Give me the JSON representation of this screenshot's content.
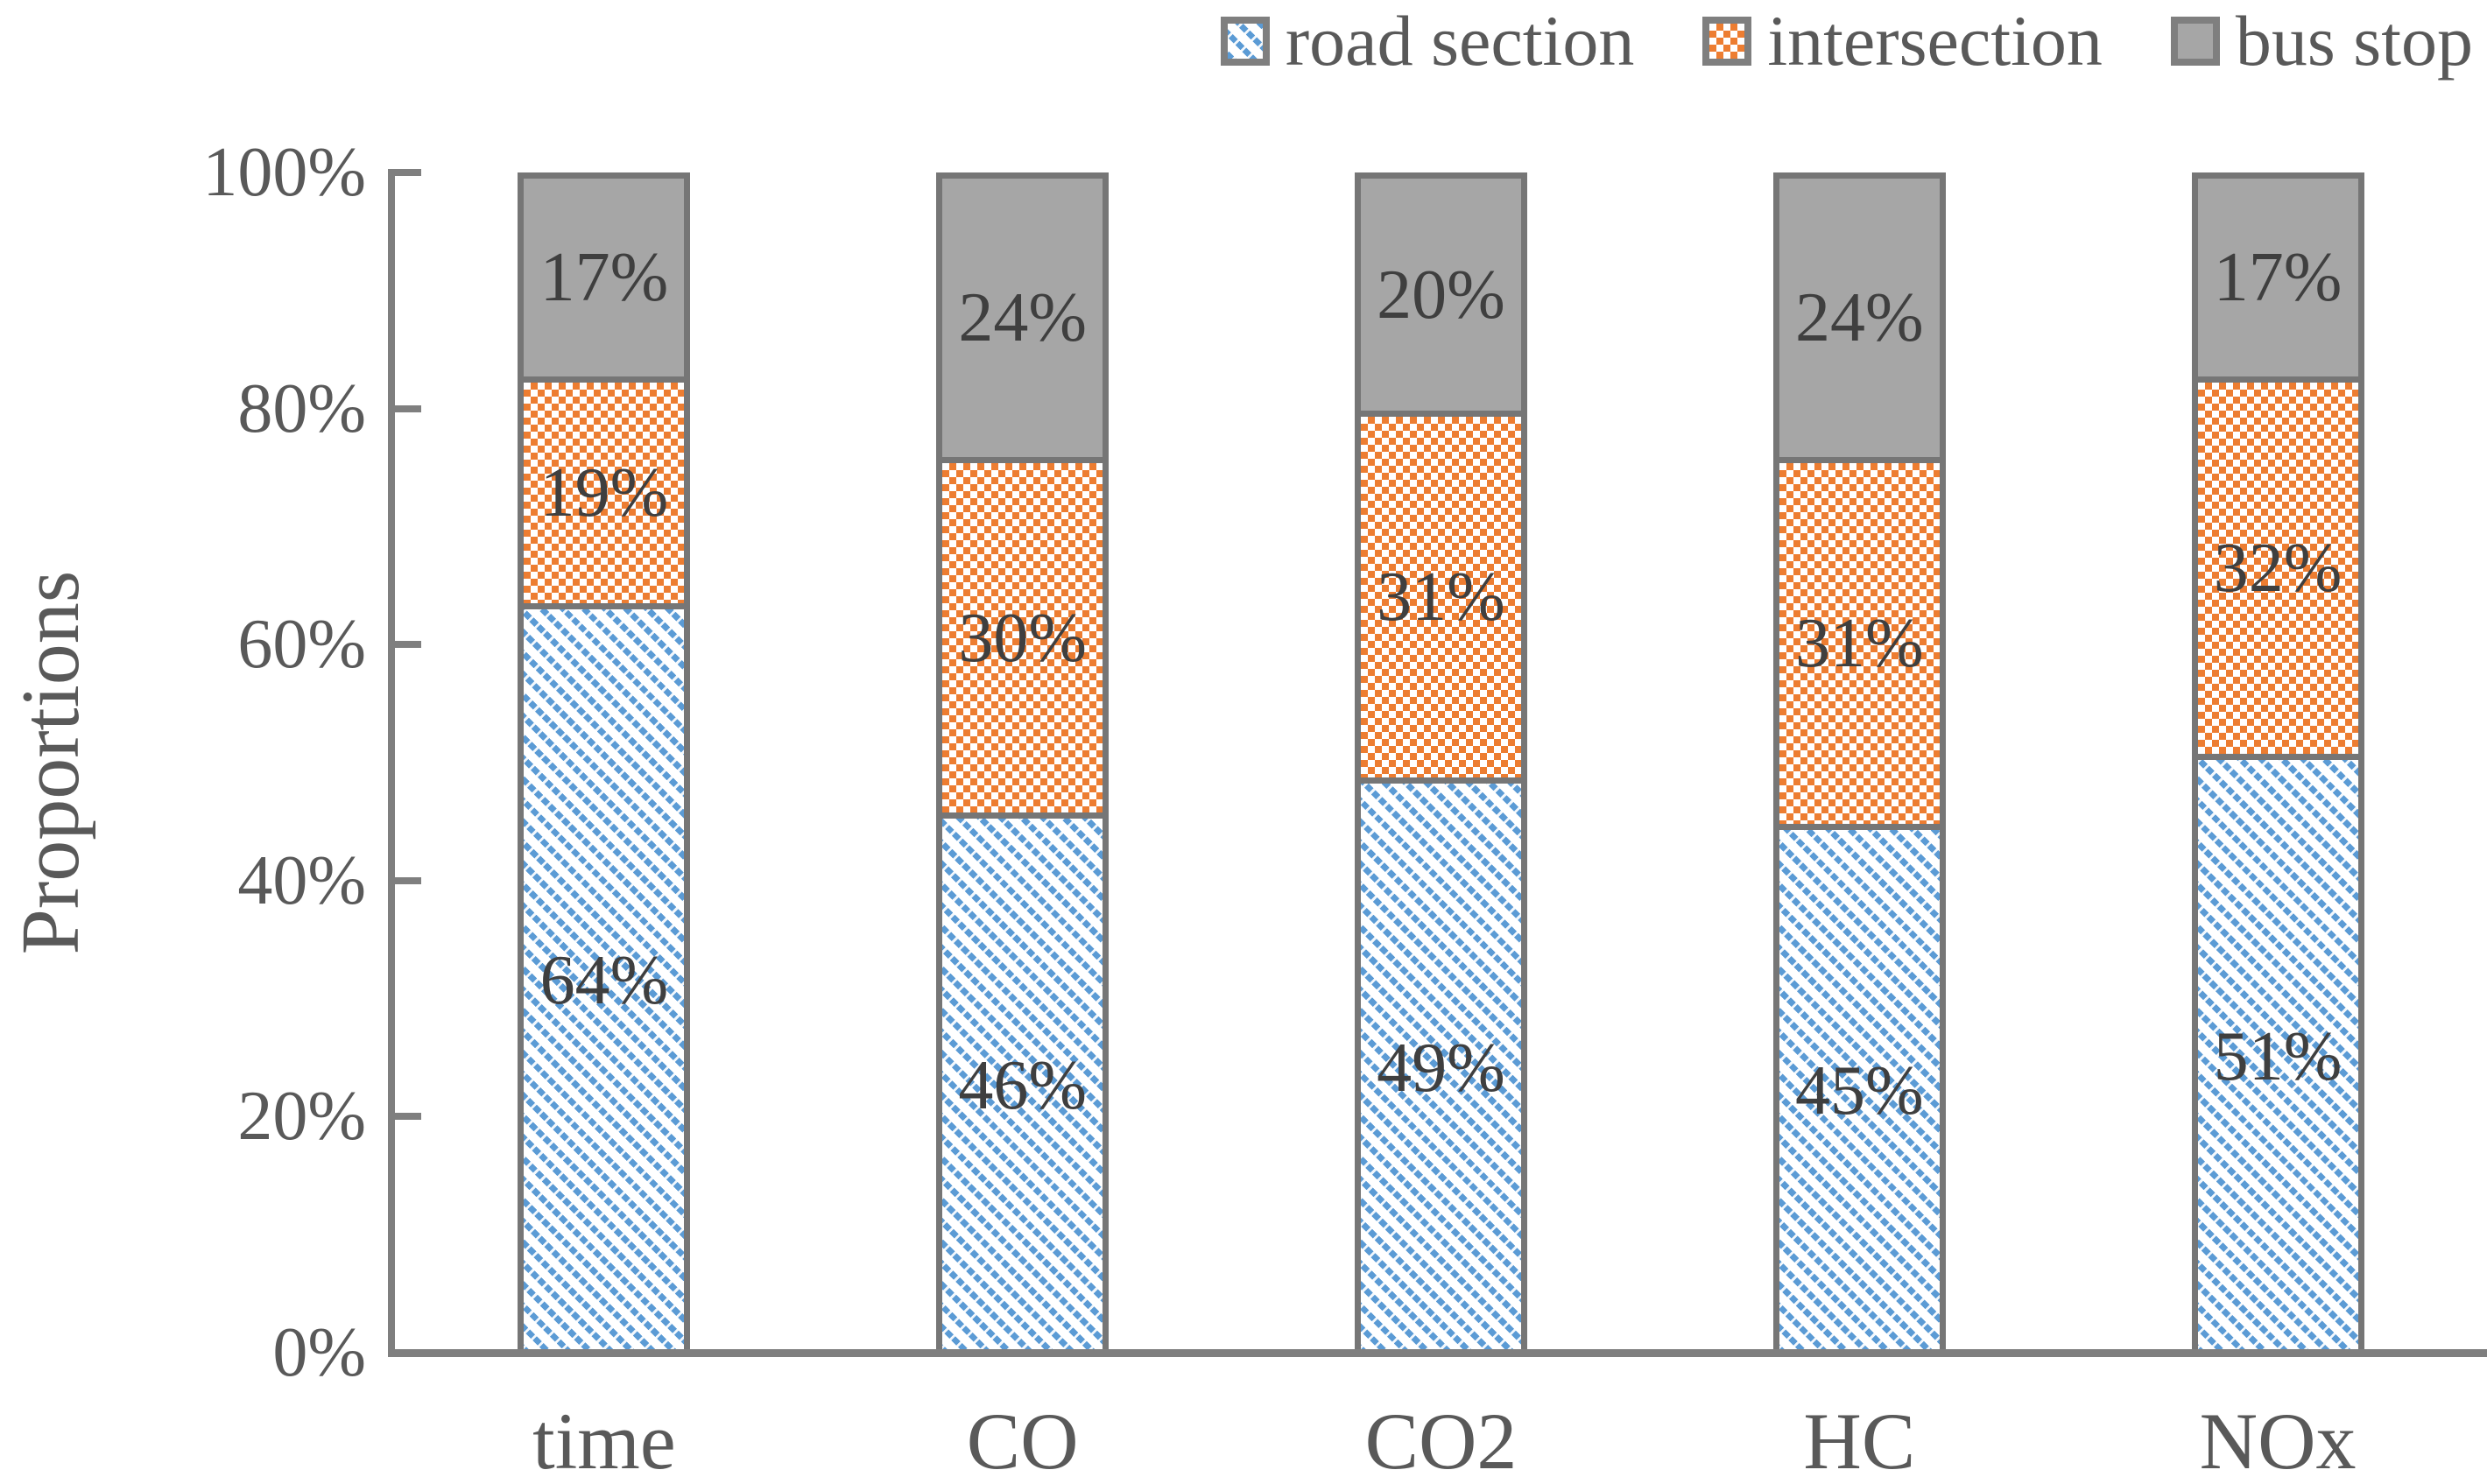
{
  "chart_data": {
    "type": "bar",
    "variant": "stacked-100",
    "title": "",
    "categories": [
      "time",
      "CO",
      "CO2",
      "HC",
      "NOx"
    ],
    "series": [
      {
        "name": "road section",
        "values": [
          64,
          46,
          49,
          45,
          51
        ],
        "color": "#5B9BD5",
        "pattern": "diagonal"
      },
      {
        "name": "intersection",
        "values": [
          19,
          30,
          31,
          31,
          32
        ],
        "color": "#ED7D31",
        "pattern": "checker"
      },
      {
        "name": "bus stop",
        "values": [
          17,
          24,
          20,
          24,
          17
        ],
        "color": "#A6A6A6",
        "pattern": "solid"
      }
    ],
    "data_label_suffix": "%",
    "xlabel": "",
    "ylabel": "Proportions",
    "ylim": [
      0,
      100
    ],
    "yticks": [
      "0%",
      "20%",
      "40%",
      "60%",
      "80%",
      "100%"
    ],
    "legend_position": "top-right",
    "grid": false
  },
  "colors": {
    "axis_line": "#7F7F7F",
    "bar_border": "#767676",
    "axis_text": "#595959",
    "segment_label_text": "#3F3F3F",
    "background": "#FFFFFF"
  }
}
